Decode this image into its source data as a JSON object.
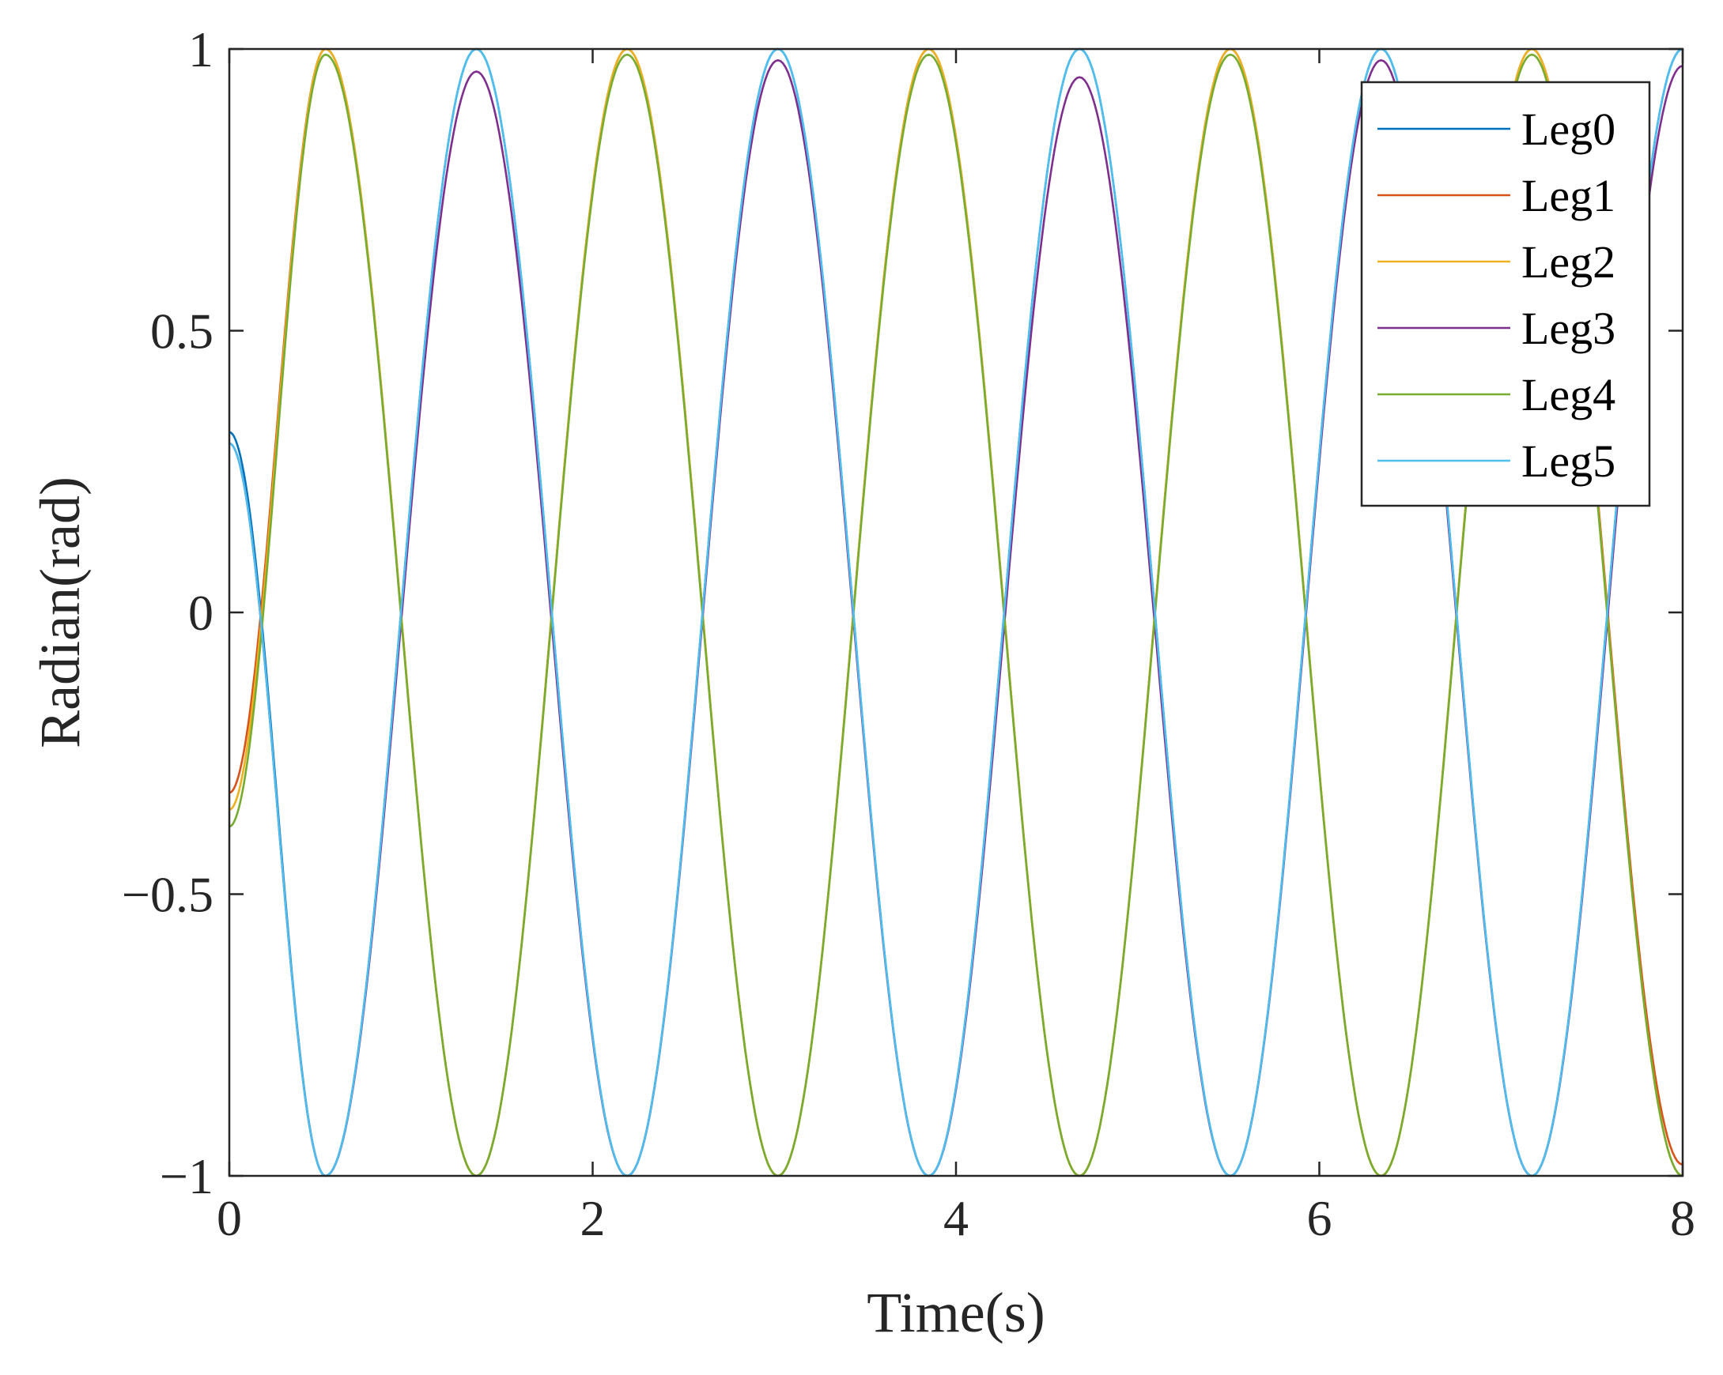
{
  "chart_data": {
    "type": "line",
    "title": "",
    "xlabel": "Time(s)",
    "ylabel": "Radian(rad)",
    "xlim": [
      0,
      8
    ],
    "ylim": [
      -1,
      1
    ],
    "x_ticks": [
      0,
      2,
      4,
      6,
      8
    ],
    "y_ticks": [
      -1,
      -0.5,
      0,
      0.5,
      1
    ],
    "x_tick_labels": [
      "0",
      "2",
      "4",
      "6",
      "8"
    ],
    "y_tick_labels": [
      "−1",
      "−0.5",
      "0",
      "0.5",
      "1"
    ],
    "grid": false,
    "legend_position": "top-right",
    "period_s": 1.66,
    "note_shape": "all series are ~sinusoids of amplitude 1; Leg0/3/5 peak first at ~1.35s, Leg1/2/4 peak first at ~0.53s",
    "series": [
      {
        "name": "Leg0",
        "color": "#0072BD",
        "x": [
          0,
          0.53,
          1.36,
          2.19,
          3.02,
          3.85,
          4.68,
          5.51,
          6.34,
          7.17,
          8.0
        ],
        "y": [
          0.32,
          -1,
          1,
          -1,
          1,
          -1,
          1,
          -1,
          1,
          -1,
          1
        ]
      },
      {
        "name": "Leg1",
        "color": "#D95319",
        "x": [
          0,
          0.53,
          1.36,
          2.19,
          3.02,
          3.85,
          4.68,
          5.51,
          6.34,
          7.17,
          8.0
        ],
        "y": [
          -0.32,
          1,
          -1,
          1,
          -1,
          1,
          -1,
          1,
          -1,
          1,
          -0.98
        ]
      },
      {
        "name": "Leg2",
        "color": "#EDB120",
        "x": [
          0,
          0.53,
          1.36,
          2.19,
          3.02,
          3.85,
          4.68,
          5.51,
          6.34,
          7.17,
          8.0
        ],
        "y": [
          -0.35,
          1,
          -1,
          1,
          -1,
          1,
          -1,
          1,
          -1,
          1,
          -1
        ]
      },
      {
        "name": "Leg3",
        "color": "#7E2F8E",
        "x": [
          0,
          0.53,
          1.36,
          2.19,
          3.02,
          3.85,
          4.68,
          5.51,
          6.34,
          7.17,
          8.0
        ],
        "y": [
          0.3,
          -1,
          0.96,
          -1,
          0.98,
          -1,
          0.95,
          -1,
          0.98,
          -1,
          0.97
        ]
      },
      {
        "name": "Leg4",
        "color": "#77AC30",
        "x": [
          0,
          0.53,
          1.36,
          2.19,
          3.02,
          3.85,
          4.68,
          5.51,
          6.34,
          7.17,
          8.0
        ],
        "y": [
          -0.38,
          0.99,
          -1,
          0.99,
          -1,
          0.99,
          -1,
          0.99,
          -1,
          0.99,
          -1
        ]
      },
      {
        "name": "Leg5",
        "color": "#4DBEEE",
        "x": [
          0,
          0.53,
          1.36,
          2.19,
          3.02,
          3.85,
          4.68,
          5.51,
          6.34,
          7.17,
          8.0
        ],
        "y": [
          0.3,
          -1,
          1,
          -1,
          1,
          -1,
          1,
          -1,
          1,
          -1,
          1
        ]
      }
    ]
  }
}
